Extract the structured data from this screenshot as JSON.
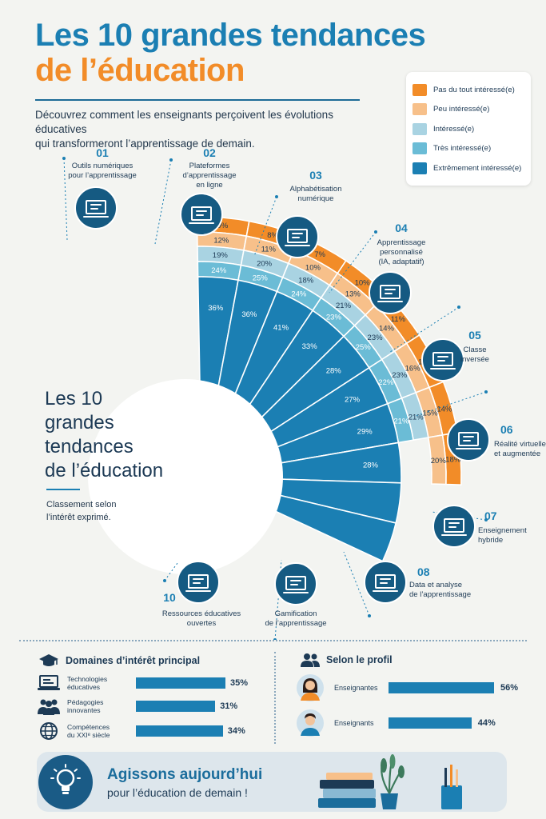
{
  "header": {
    "title_line1": "Les 10 grandes tendances",
    "title_line2": "de l’éducation",
    "intro_line1": "Découvrez comment les enseignants perçoivent les évolutions éducatives",
    "intro_line2": "qui transformeront l’apprentissage de demain."
  },
  "center": {
    "title_l1": "Les 10",
    "title_l2": "grandes",
    "title_l3": "tendances",
    "title_l4": "de l’éducation",
    "sub_l1": "Classement selon",
    "sub_l2": "l’intérêt exprimé."
  },
  "colors": {
    "pas_du_tout": "#f28c28",
    "peu": "#f7c08a",
    "interesse": "#a9d3e2",
    "tres": "#6bbcd6",
    "extremement": "#1b7fb3",
    "dark_circle": "#155a82"
  },
  "chart_data": {
    "type": "stacked-radial-bar",
    "series": [
      {
        "name": "Pas du tout intéressé(e)",
        "values": [
          9,
          8,
          7,
          10,
          11,
          13,
          14,
          18,
          null,
          null
        ]
      },
      {
        "name": "Peu intéressé(e)",
        "values": [
          12,
          11,
          10,
          13,
          14,
          16,
          15,
          20,
          null,
          null
        ]
      },
      {
        "name": "Intéressé(e)",
        "values": [
          19,
          20,
          18,
          21,
          23,
          23,
          21,
          null,
          null,
          null
        ]
      },
      {
        "name": "Très intéressé(e)",
        "values": [
          24,
          25,
          24,
          23,
          25,
          22,
          21,
          null,
          null,
          null
        ]
      },
      {
        "name": "Extrêmement intéressé(e)",
        "values": [
          36,
          36,
          41,
          33,
          28,
          27,
          29,
          28,
          null,
          null
        ]
      }
    ],
    "categories": [
      {
        "num": "01",
        "lines": [
          "Outils numériques",
          "pour l’apprentissage"
        ],
        "icon": "laptop-book-icon"
      },
      {
        "num": "02",
        "lines": [
          "Plateformes",
          "d’apprentissage",
          "en ligne"
        ],
        "icon": "monitor-graduation-icon"
      },
      {
        "num": "03",
        "lines": [
          "Alphabétisation",
          "numérique"
        ],
        "icon": "digital-head-icon"
      },
      {
        "num": "04",
        "lines": [
          "Apprentissage",
          "personnalisé",
          "(IA, adaptatif)"
        ],
        "icon": "sliders-person-icon"
      },
      {
        "num": "05",
        "lines": [
          "Classe",
          "inversée"
        ],
        "icon": "group-arrows-icon"
      },
      {
        "num": "06",
        "lines": [
          "Réalité virtuelle",
          "et augmentée"
        ],
        "icon": "vr-headset-icon"
      },
      {
        "num": "07",
        "lines": [
          "Enseignement",
          "hybride"
        ],
        "icon": "house-screen-icon"
      },
      {
        "num": "08",
        "lines": [
          "Data et analyse",
          "de l’apprentissage"
        ],
        "icon": "chart-magnifier-icon"
      },
      {
        "num": "",
        "lines": [
          "Gamification",
          "de l’apprentissage"
        ],
        "icon": "trophy-icon"
      },
      {
        "num": "10",
        "lines": [
          "Ressources éducatives",
          "ouvertes"
        ],
        "icon": "open-book-icon"
      }
    ]
  },
  "domains": {
    "title": "Domaines d’intérêt principal",
    "items": [
      {
        "lines": [
          "Technologies éducatives"
        ],
        "value": 35,
        "label": "35%",
        "icon": "laptop-icon"
      },
      {
        "lines": [
          "Pédagogies",
          "innovantes"
        ],
        "value": 31,
        "label": "31%",
        "icon": "people-icon"
      },
      {
        "lines": [
          "Compétences",
          "du XXIᵉ siècle"
        ],
        "value": 34,
        "label": "34%",
        "icon": "globe-icon"
      }
    ]
  },
  "profile": {
    "title": "Selon le profil",
    "items": [
      {
        "label": "Enseignantes",
        "value": 56,
        "text": "56%",
        "icon": "woman-avatar-icon"
      },
      {
        "label": "Enseignants",
        "value": 44,
        "text": "44%",
        "icon": "man-avatar-icon"
      }
    ]
  },
  "cta": {
    "title": "Agissons aujourd’hui",
    "subtitle": "pour l’éducation de demain !"
  }
}
